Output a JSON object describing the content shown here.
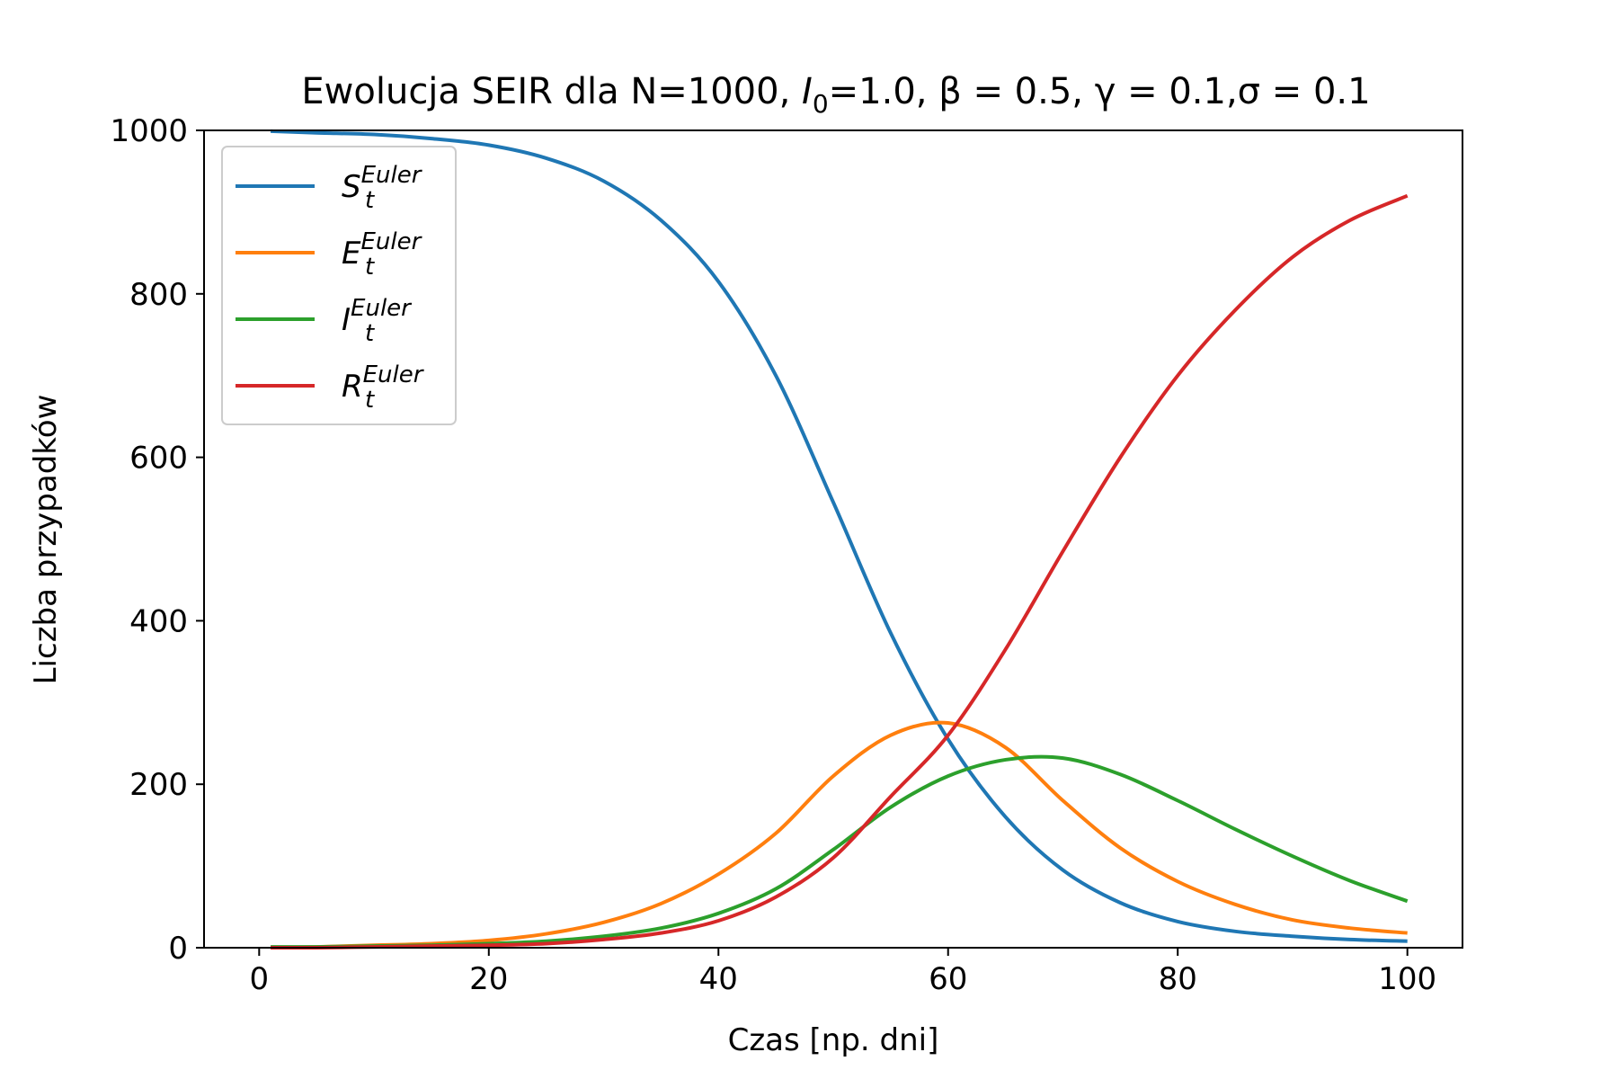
{
  "chart_data": {
    "type": "line",
    "title": {
      "prefix": "Ewolucja SEIR dla N=1000, ",
      "i_sym": "I",
      "i_sub": "0",
      "i_val": "=1.0, ",
      "beta": "β = 0.5, ",
      "gamma": "γ = 0.1,",
      "sigma": "σ = 0.1"
    },
    "xlabel": "Czas [np. dni]",
    "ylabel": "Liczba przypadków",
    "xlim": [
      -4.8,
      104.8
    ],
    "ylim": [
      0,
      1000
    ],
    "xticks": [
      "0",
      "20",
      "40",
      "60",
      "80",
      "100"
    ],
    "yticks": [
      "0",
      "200",
      "400",
      "600",
      "800",
      "1000"
    ],
    "grid": false,
    "legend": "upper-left",
    "x": [
      1,
      5,
      10,
      15,
      20,
      25,
      30,
      35,
      40,
      45,
      50,
      55,
      60,
      65,
      70,
      75,
      80,
      85,
      90,
      95,
      100
    ],
    "series": [
      {
        "sym": "S",
        "sub": "t",
        "sup": "Euler",
        "color": "#1f77b4",
        "values": [
          999,
          997,
          995,
          990,
          982,
          966,
          938,
          890,
          815,
          700,
          545,
          385,
          255,
          160,
          95,
          55,
          32,
          20,
          14,
          10,
          8
        ]
      },
      {
        "sym": "E",
        "sub": "t",
        "sup": "Euler",
        "color": "#ff7f0e",
        "values": [
          0,
          1,
          3,
          5,
          9,
          17,
          31,
          54,
          90,
          140,
          210,
          260,
          275,
          245,
          180,
          122,
          81,
          53,
          34,
          24,
          18
        ]
      },
      {
        "sym": "I",
        "sub": "t",
        "sup": "Euler",
        "color": "#2ca02c",
        "values": [
          1,
          1,
          2,
          3,
          5,
          8,
          14,
          24,
          42,
          72,
          120,
          172,
          210,
          230,
          232,
          212,
          180,
          145,
          112,
          82,
          57
        ]
      },
      {
        "sym": "R",
        "sub": "t",
        "sup": "Euler",
        "color": "#d62728",
        "values": [
          0,
          0,
          1,
          2,
          3,
          5,
          10,
          18,
          33,
          62,
          110,
          185,
          260,
          365,
          485,
          600,
          700,
          780,
          845,
          890,
          920
        ]
      }
    ]
  }
}
